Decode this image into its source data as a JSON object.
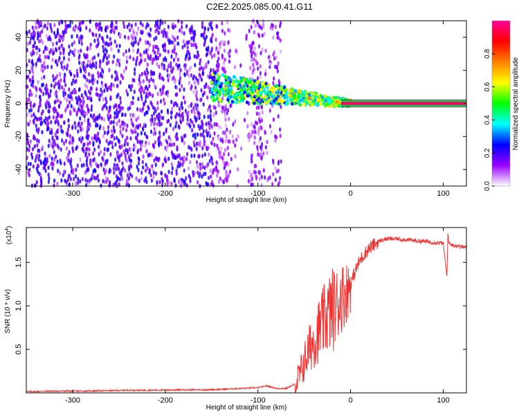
{
  "title": "C2E2.2025.085.00.41.G11",
  "chart_data": [
    {
      "type": "heatmap",
      "xlabel": "Height of straight line (km)",
      "ylabel": "Frequency (Hz)",
      "xlim": [
        -350,
        125
      ],
      "ylim": [
        -50,
        50
      ],
      "xticks": [
        -300,
        -200,
        -100,
        0,
        100
      ],
      "yticks": [
        -40,
        -20,
        0,
        20,
        40
      ],
      "colorbar": {
        "label": "Normalized spectral amplitude",
        "range": [
          0,
          1
        ],
        "ticks": [
          0.0,
          0.2,
          0.4,
          0.6,
          0.8
        ],
        "tick_labels": [
          "0.0",
          "0.2",
          "0.4",
          "0.6",
          "0.8"
        ],
        "colormap": [
          "#ffffff",
          "#9900ff",
          "#0000ff",
          "#00ffff",
          "#00ff00",
          "#ffff00",
          "#ff7f00",
          "#ff0000",
          "#ff0099"
        ]
      },
      "description_values": {
        "noise_region_x": [
          -350,
          -75
        ],
        "signal_track_x": [
          -150,
          125
        ],
        "signal_track_freq_start": 10,
        "signal_track_freq_end": 0
      }
    },
    {
      "type": "line",
      "xlabel": "Height of straight line (km)",
      "ylabel": "SNR (10 * v/v)",
      "y_multiplier_label": "(x10",
      "y_multiplier_exp": "4",
      "y_multiplier_close": ")",
      "xlim": [
        -350,
        125
      ],
      "ylim": [
        0,
        1.9
      ],
      "xticks": [
        -300,
        -200,
        -100,
        0,
        100
      ],
      "yticks": [
        0.5,
        1.0,
        1.5
      ],
      "ytick_labels": [
        "0.5",
        "1.0",
        "1.5"
      ],
      "color": "#ee3333",
      "series": [
        {
          "x": [
            -350,
            -320,
            -300,
            -280,
            -260,
            -240,
            -220,
            -200,
            -180,
            -160,
            -140,
            -120,
            -100,
            -90,
            -80,
            -70,
            -60,
            -55,
            -50,
            -45,
            -40,
            -35,
            -30,
            -25,
            -20,
            -15,
            -10,
            -5,
            0,
            5,
            10,
            15,
            20,
            25,
            30,
            35,
            40,
            50,
            60,
            70,
            80,
            90,
            100,
            104,
            105,
            106,
            110,
            125
          ],
          "y": [
            0.015,
            0.02,
            0.02,
            0.022,
            0.025,
            0.03,
            0.03,
            0.032,
            0.035,
            0.035,
            0.04,
            0.05,
            0.06,
            0.08,
            0.05,
            0.05,
            0.1,
            0.2,
            0.35,
            0.5,
            0.6,
            0.7,
            0.8,
            0.9,
            0.95,
            1.0,
            1.1,
            1.15,
            1.25,
            1.4,
            1.52,
            1.6,
            1.66,
            1.7,
            1.74,
            1.76,
            1.77,
            1.77,
            1.76,
            1.75,
            1.74,
            1.73,
            1.72,
            1.33,
            1.85,
            1.72,
            1.7,
            1.67
          ]
        }
      ]
    }
  ]
}
